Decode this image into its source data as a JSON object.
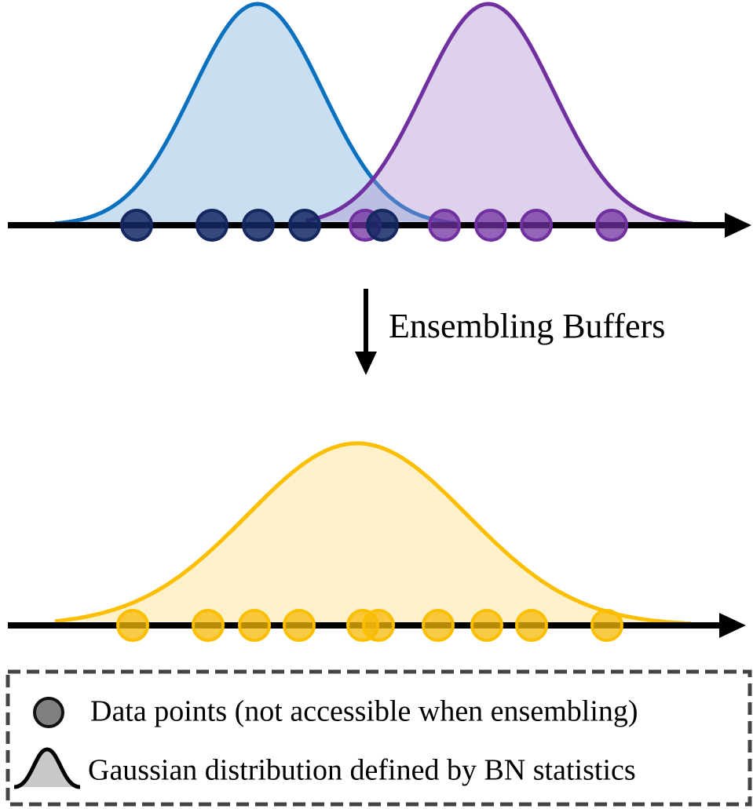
{
  "arrow_label": "Ensembling Buffers",
  "legend": {
    "items": [
      "Data points (not accessible when ensembling)",
      "Gaussian distribution defined by BN statistics"
    ]
  }
}
